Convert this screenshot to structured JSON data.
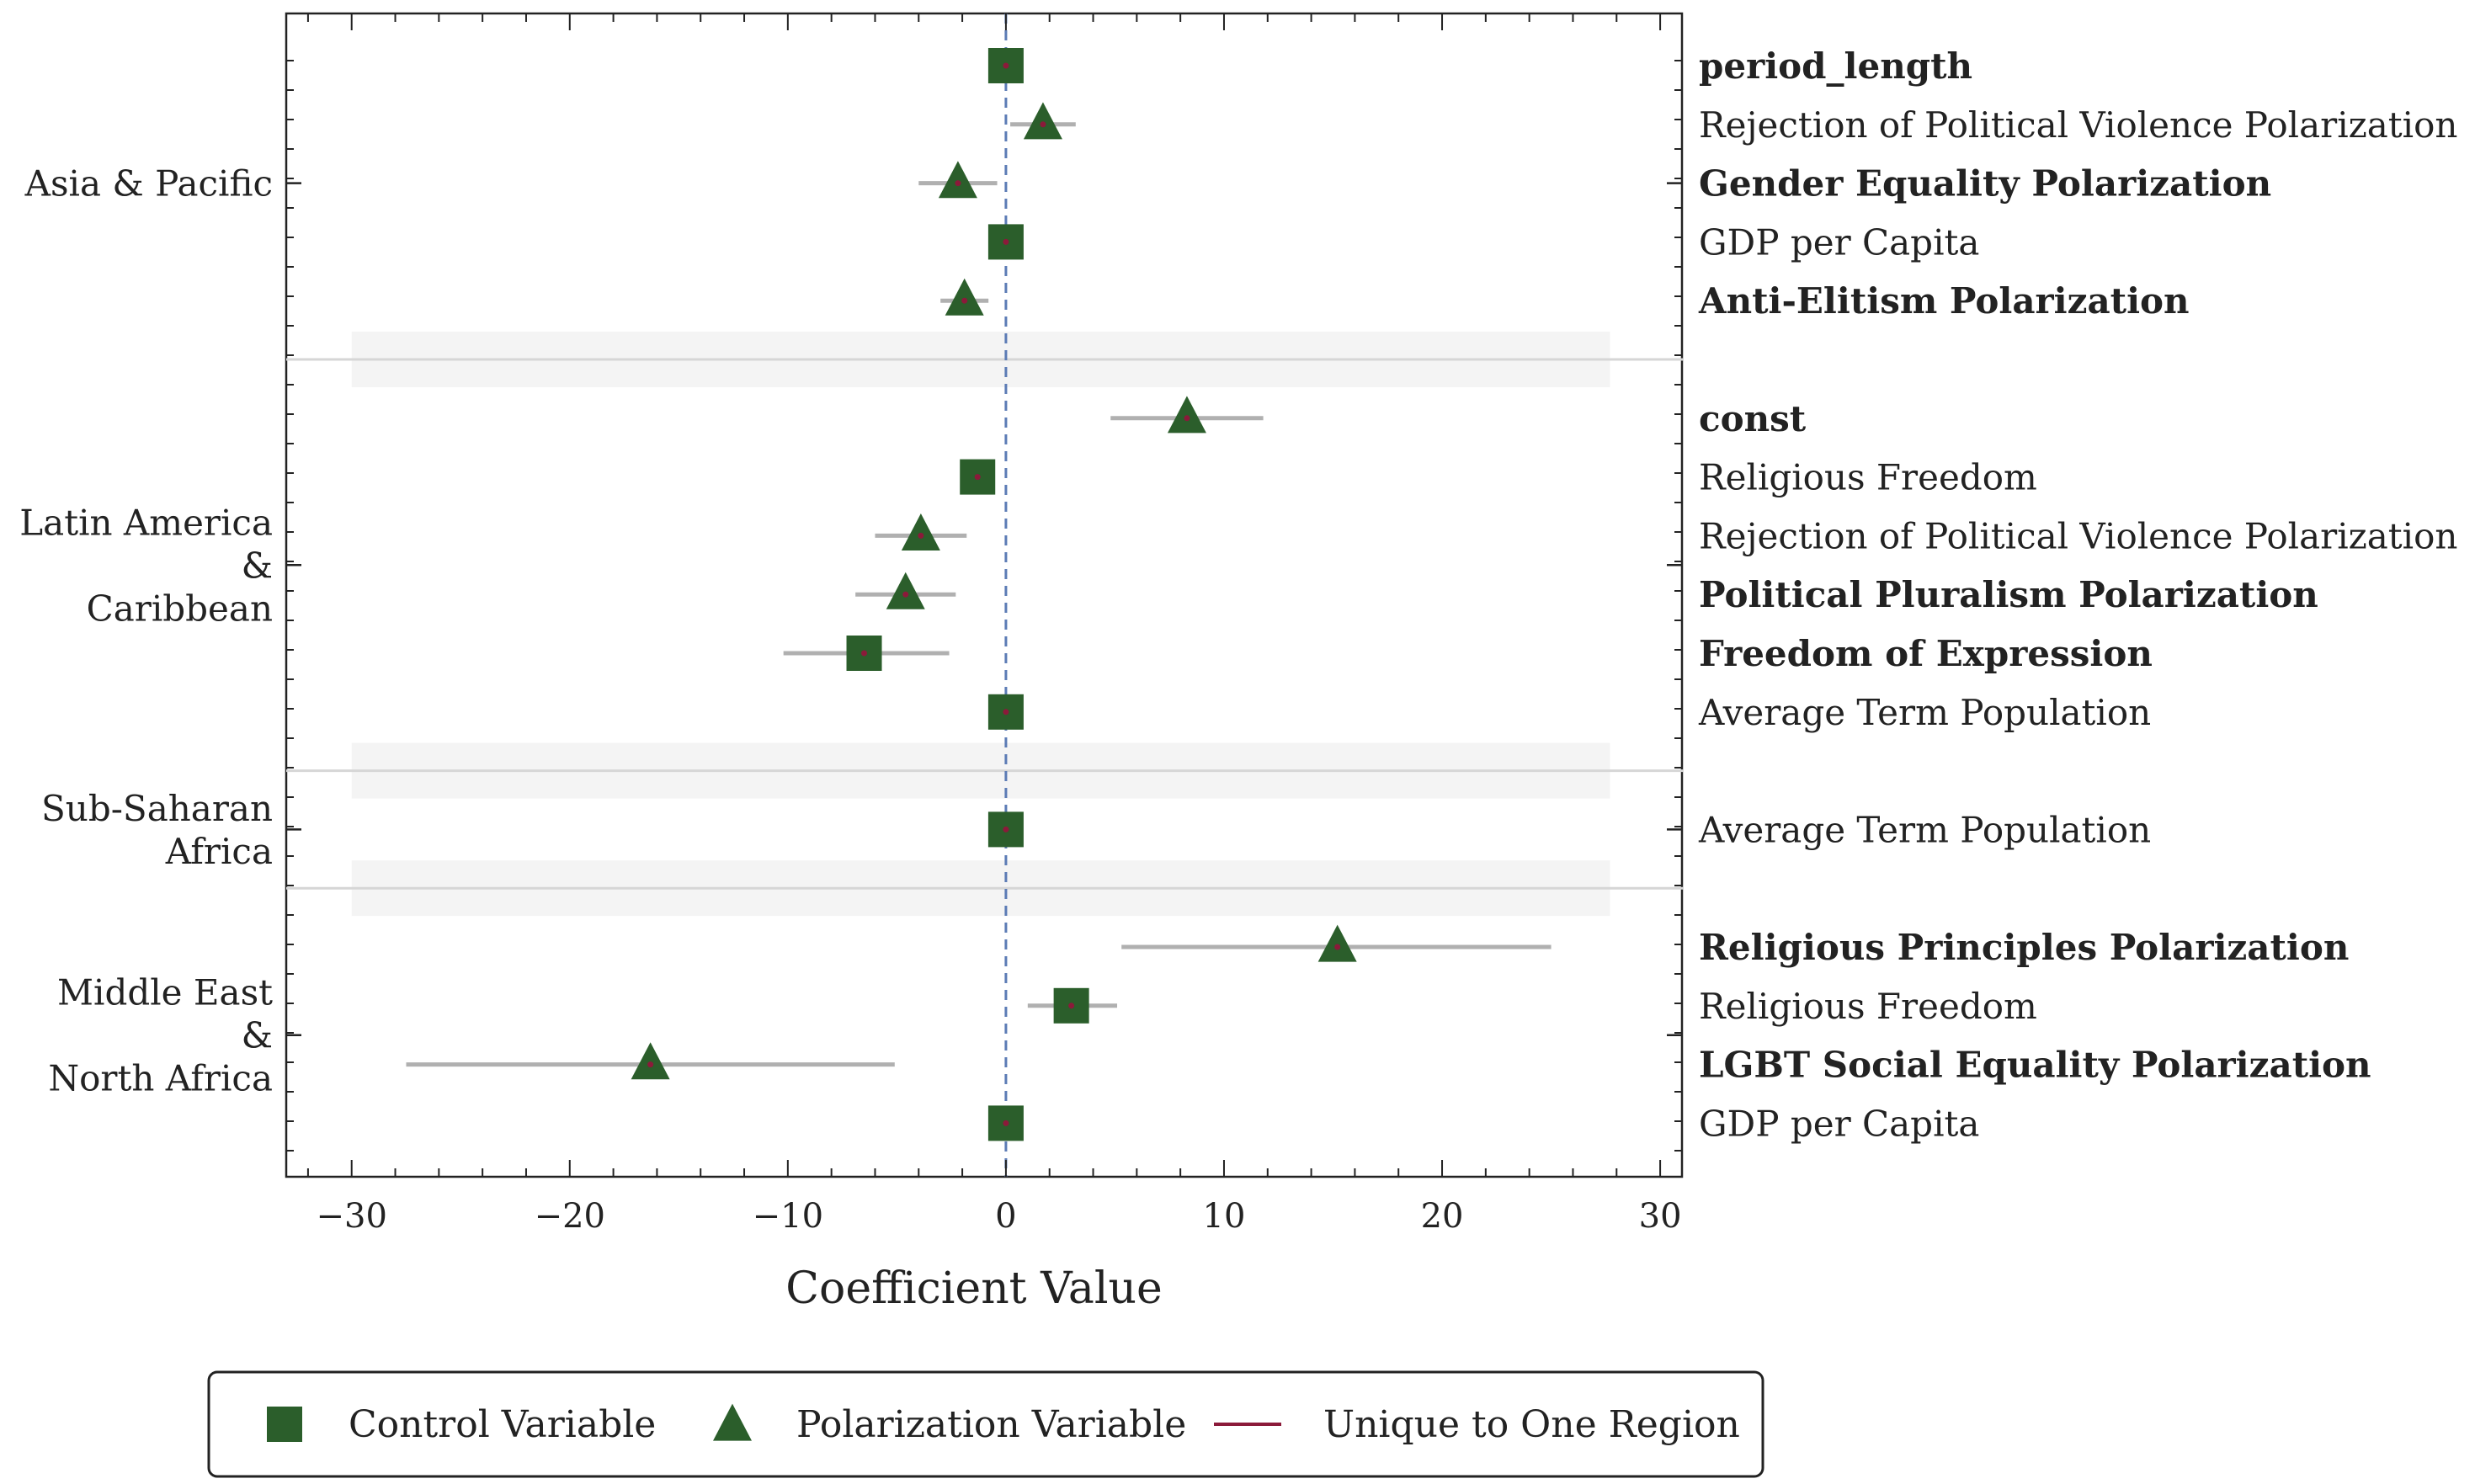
{
  "chart_data": {
    "type": "scatter",
    "subtype": "coefficient-forest-plot",
    "title": "",
    "xlabel": "Coefficient Value",
    "ylabel": "",
    "xlim": [
      -33,
      31
    ],
    "xticks": [
      -30,
      -20,
      -10,
      0,
      10,
      20,
      30
    ],
    "xtick_labels": [
      "−30",
      "−20",
      "−10",
      "0",
      "10",
      "20",
      "30"
    ],
    "reference_line": 0,
    "grid": false,
    "legend_position": "bottom-center",
    "colors": {
      "marker": "#2b5e2b",
      "error_bar": "#b0b0b0",
      "unique_marker": "#8b1a3a",
      "zero_line": "#5b7bb5",
      "separator": "#d6d6d6",
      "separator_band": "#f4f4f4"
    },
    "regions": [
      {
        "name": "Asia & Pacific",
        "label_lines": [
          "Asia & Pacific"
        ],
        "items": [
          {
            "label": "period_length",
            "kind": "control",
            "coef": 0.0,
            "ci": [
              0.0,
              0.0
            ],
            "bold": true
          },
          {
            "label": "Rejection of Political Violence Polarization",
            "kind": "polarization",
            "coef": 1.7,
            "ci": [
              0.2,
              3.2
            ],
            "bold": false
          },
          {
            "label": "Gender Equality Polarization",
            "kind": "polarization",
            "coef": -2.2,
            "ci": [
              -4.0,
              -0.4
            ],
            "bold": true
          },
          {
            "label": "GDP per Capita",
            "kind": "control",
            "coef": 0.0,
            "ci": [
              0.0,
              0.0
            ],
            "bold": false
          },
          {
            "label": "Anti-Elitism Polarization",
            "kind": "polarization",
            "coef": -1.9,
            "ci": [
              -3.0,
              -0.8
            ],
            "bold": true
          }
        ]
      },
      {
        "name": "Latin America & Caribbean",
        "label_lines": [
          "Latin America",
          "&",
          "Caribbean"
        ],
        "items": [
          {
            "label": "const",
            "kind": "polarization",
            "coef": 8.3,
            "ci": [
              4.8,
              11.8
            ],
            "bold": true
          },
          {
            "label": "Religious Freedom",
            "kind": "control",
            "coef": -1.3,
            "ci": [
              -2.0,
              -0.6
            ],
            "bold": false
          },
          {
            "label": "Rejection of Political Violence Polarization",
            "kind": "polarization",
            "coef": -3.9,
            "ci": [
              -6.0,
              -1.8
            ],
            "bold": false
          },
          {
            "label": "Political Pluralism Polarization",
            "kind": "polarization",
            "coef": -4.6,
            "ci": [
              -6.9,
              -2.3
            ],
            "bold": true
          },
          {
            "label": "Freedom of Expression",
            "kind": "control",
            "coef": -6.5,
            "ci": [
              -10.2,
              -2.6
            ],
            "bold": true
          },
          {
            "label": "Average Term Population",
            "kind": "control",
            "coef": 0.0,
            "ci": [
              0.0,
              0.0
            ],
            "bold": false
          }
        ]
      },
      {
        "name": "Sub-Saharan Africa",
        "label_lines": [
          "Sub-Saharan",
          "Africa"
        ],
        "items": [
          {
            "label": "Average Term Population",
            "kind": "control",
            "coef": 0.0,
            "ci": [
              0.0,
              0.0
            ],
            "bold": false
          }
        ]
      },
      {
        "name": "Middle East & North Africa",
        "label_lines": [
          "Middle East",
          "&",
          "North Africa"
        ],
        "items": [
          {
            "label": "Religious Principles Polarization",
            "kind": "polarization",
            "coef": 15.2,
            "ci": [
              5.3,
              25.0
            ],
            "bold": true
          },
          {
            "label": "Religious Freedom",
            "kind": "control",
            "coef": 3.0,
            "ci": [
              1.0,
              5.1
            ],
            "bold": false
          },
          {
            "label": "LGBT Social Equality Polarization",
            "kind": "polarization",
            "coef": -16.3,
            "ci": [
              -27.5,
              -5.1
            ],
            "bold": true
          },
          {
            "label": "GDP per Capita",
            "kind": "control",
            "coef": 0.0,
            "ci": [
              0.0,
              0.0
            ],
            "bold": false
          }
        ]
      }
    ],
    "legend": [
      {
        "kind": "control",
        "label": "Control Variable"
      },
      {
        "kind": "polarization",
        "label": "Polarization Variable"
      },
      {
        "kind": "unique",
        "label": "Unique to One Region"
      }
    ]
  }
}
